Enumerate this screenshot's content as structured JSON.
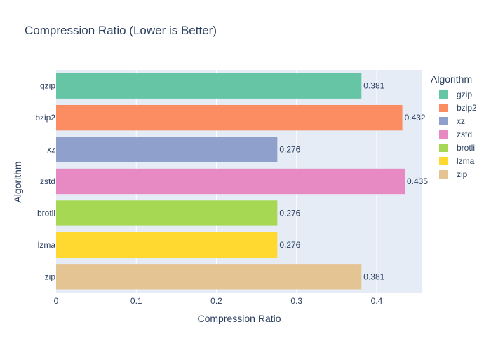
{
  "chart_data": {
    "type": "bar",
    "orientation": "horizontal",
    "title": "Compression Ratio (Lower is Better)",
    "xlabel": "Compression Ratio",
    "ylabel": "Algorithm",
    "xlim": [
      0,
      0.456
    ],
    "x_ticks": [
      "0",
      "0.1",
      "0.2",
      "0.3",
      "0.4"
    ],
    "grid": true,
    "legend_title": "Algorithm",
    "legend_position": "right",
    "categories": [
      "gzip",
      "bzip2",
      "xz",
      "zstd",
      "brotli",
      "lzma",
      "zip"
    ],
    "values": [
      0.381,
      0.432,
      0.276,
      0.435,
      0.276,
      0.276,
      0.381
    ],
    "data_labels": [
      "0.381",
      "0.432",
      "0.276",
      "0.435",
      "0.276",
      "0.276",
      "0.381"
    ],
    "colors": [
      "#66c5a5",
      "#fc8d62",
      "#8ea0cb",
      "#e78ac3",
      "#a6d854",
      "#ffd92f",
      "#e5c494"
    ],
    "plot_background": "#e5ecf6"
  }
}
